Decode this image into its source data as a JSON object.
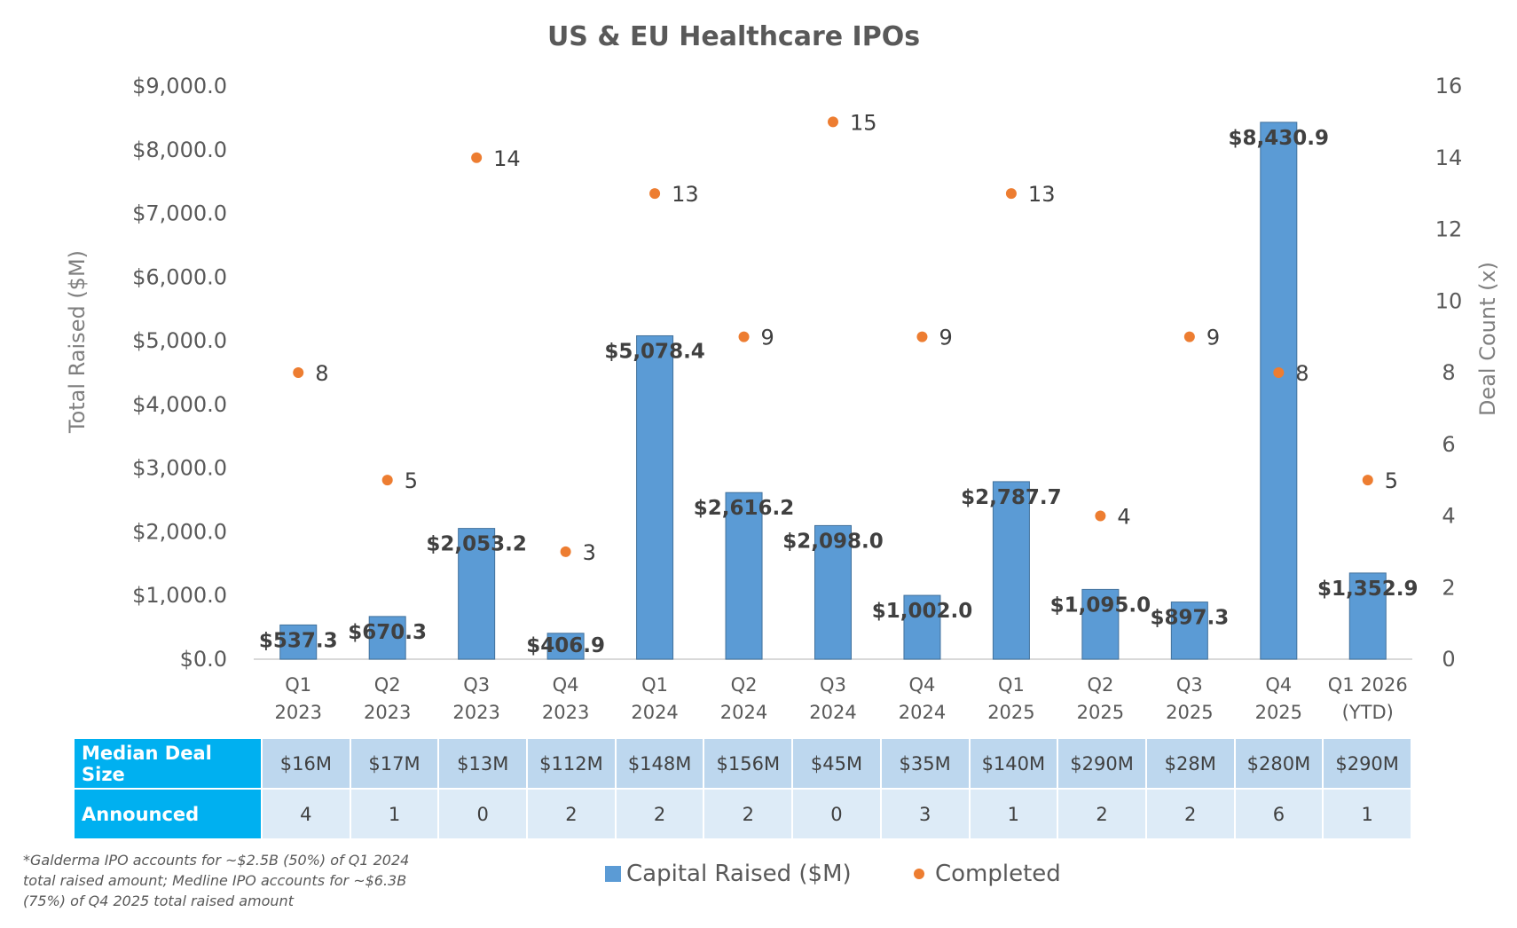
{
  "chart_data": {
    "type": "bar",
    "title": "US & EU Healthcare IPOs",
    "ylabel": "Total Raised ($M)",
    "y2label": "Deal Count (x)",
    "ylim": [
      0,
      9000
    ],
    "y2lim": [
      0,
      16
    ],
    "yticks": [
      "$0.0",
      "$1,000.0",
      "$2,000.0",
      "$3,000.0",
      "$4,000.0",
      "$5,000.0",
      "$6,000.0",
      "$7,000.0",
      "$8,000.0",
      "$9,000.0"
    ],
    "y2ticks": [
      "0",
      "2",
      "4",
      "6",
      "8",
      "10",
      "12",
      "14",
      "16"
    ],
    "categories": [
      [
        "Q1",
        "2023"
      ],
      [
        "Q2",
        "2023"
      ],
      [
        "Q3",
        "2023"
      ],
      [
        "Q4",
        "2023"
      ],
      [
        "Q1",
        "2024"
      ],
      [
        "Q2",
        "2024"
      ],
      [
        "Q3",
        "2024"
      ],
      [
        "Q4",
        "2024"
      ],
      [
        "Q1",
        "2025"
      ],
      [
        "Q2",
        "2025"
      ],
      [
        "Q3",
        "2025"
      ],
      [
        "Q4",
        "2025"
      ],
      [
        "Q1 2026",
        "(YTD)"
      ]
    ],
    "series": [
      {
        "name": "Capital Raised ($M)",
        "type": "bar",
        "axis": "left",
        "color": "#5b9bd5",
        "values": [
          537.3,
          670.3,
          2053.2,
          406.9,
          5078.4,
          2616.2,
          2098.0,
          1002.0,
          2787.7,
          1095.0,
          897.3,
          8430.9,
          1352.9
        ],
        "labels": [
          "$537.3",
          "$670.3",
          "$2,053.2",
          "$406.9",
          "$5,078.4",
          "$2,616.2",
          "$2,098.0",
          "$1,002.0",
          "$2,787.7",
          "$1,095.0",
          "$897.3",
          "$8,430.9",
          "$1,352.9"
        ]
      },
      {
        "name": "Completed",
        "type": "scatter",
        "axis": "right",
        "color": "#ed7d31",
        "values": [
          8,
          5,
          14,
          3,
          13,
          9,
          15,
          9,
          13,
          4,
          9,
          8,
          5
        ]
      }
    ],
    "legend_position": "bottom"
  },
  "table": {
    "rows": [
      {
        "header": "Median Deal Size",
        "values": [
          "$16M",
          "$17M",
          "$13M",
          "$112M",
          "$148M",
          "$156M",
          "$45M",
          "$35M",
          "$140M",
          "$290M",
          "$28M",
          "$280M",
          "$290M"
        ]
      },
      {
        "header": "Announced",
        "values": [
          "4",
          "1",
          "0",
          "2",
          "2",
          "2",
          "0",
          "3",
          "1",
          "2",
          "2",
          "6",
          "1"
        ]
      }
    ]
  },
  "footnote": "*Galderma IPO accounts for ~$2.5B (50%) of Q1 2024 total raised amount; Medline IPO accounts for ~$6.3B (75%) of Q4 2025 total raised amount",
  "legend": {
    "bar_label": "Capital Raised ($M)",
    "dot_label": "Completed"
  }
}
